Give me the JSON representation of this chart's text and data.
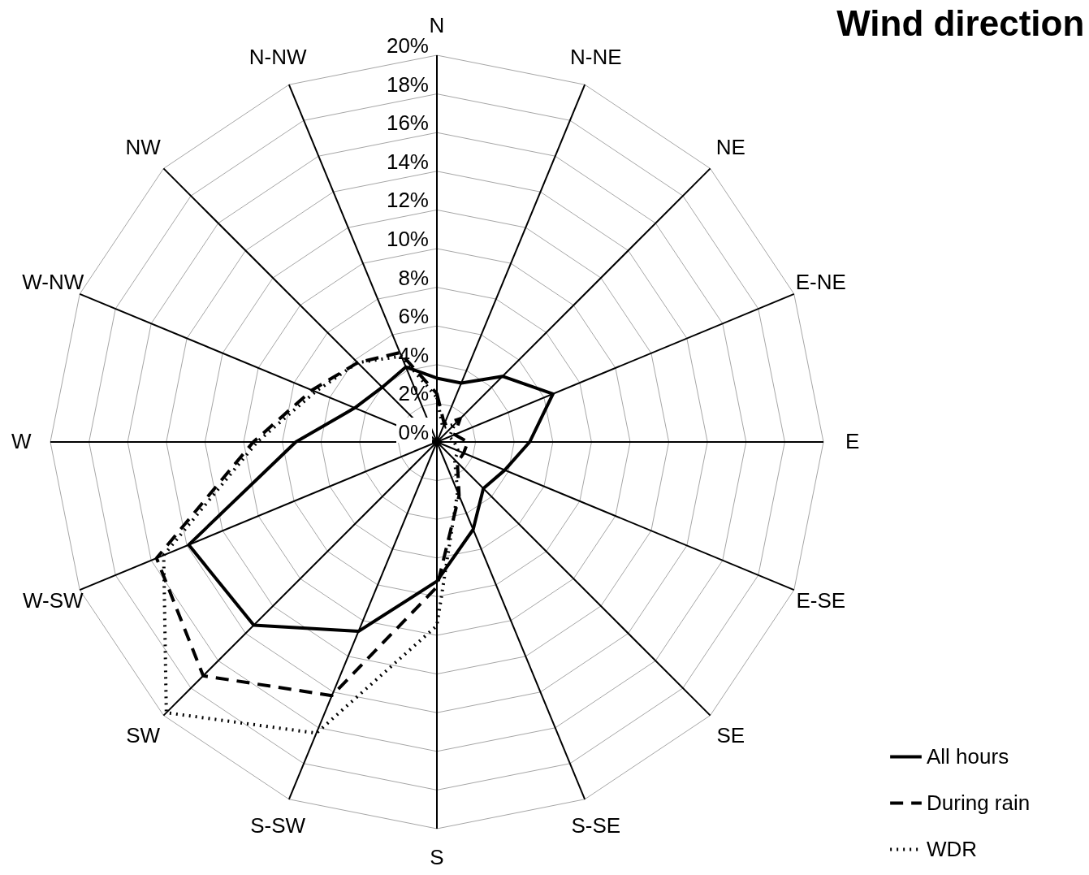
{
  "chart_data": {
    "type": "radar",
    "title": "Wind direction",
    "categories": [
      "N",
      "N-NE",
      "NE",
      "E-NE",
      "E",
      "E-SE",
      "SE",
      "S-SE",
      "S",
      "S-SW",
      "SW",
      "W-SW",
      "W",
      "W-NW",
      "NW",
      "N-NW"
    ],
    "ylim": [
      0,
      20
    ],
    "yticks": [
      {
        "value": 0,
        "label": "0%"
      },
      {
        "value": 2,
        "label": "2%"
      },
      {
        "value": 4,
        "label": "4%"
      },
      {
        "value": 6,
        "label": "6%"
      },
      {
        "value": 8,
        "label": "8%"
      },
      {
        "value": 10,
        "label": "10%"
      },
      {
        "value": 12,
        "label": "12%"
      },
      {
        "value": 14,
        "label": "14%"
      },
      {
        "value": 16,
        "label": "16%"
      },
      {
        "value": 18,
        "label": "18%"
      },
      {
        "value": 20,
        "label": "20%"
      }
    ],
    "grid": true,
    "legend": "bottom right",
    "series": [
      {
        "name": "All hours",
        "color": "#000000",
        "line_style": "solid",
        "values": [
          3.3,
          3.3,
          4.8,
          6.5,
          4.8,
          3.8,
          3.4,
          4.9,
          7.2,
          10.6,
          13.4,
          13.9,
          7.3,
          4.6,
          4.0,
          4.2
        ]
      },
      {
        "name": "During rain",
        "color": "#000000",
        "line_style": "dashed",
        "values": [
          2.5,
          1.0,
          1.7,
          1.0,
          1.6,
          1.5,
          1.5,
          3.0,
          7.5,
          14.2,
          17.1,
          15.7,
          9.5,
          7.0,
          5.8,
          5.0
        ]
      },
      {
        "name": "WDR",
        "color": "#000000",
        "line_style": "dotted",
        "values": [
          2.3,
          0.8,
          1.3,
          0.7,
          0.9,
          1.2,
          1.3,
          2.8,
          9.5,
          16.3,
          19.8,
          15.3,
          9.3,
          6.8,
          5.8,
          4.8
        ]
      }
    ]
  }
}
